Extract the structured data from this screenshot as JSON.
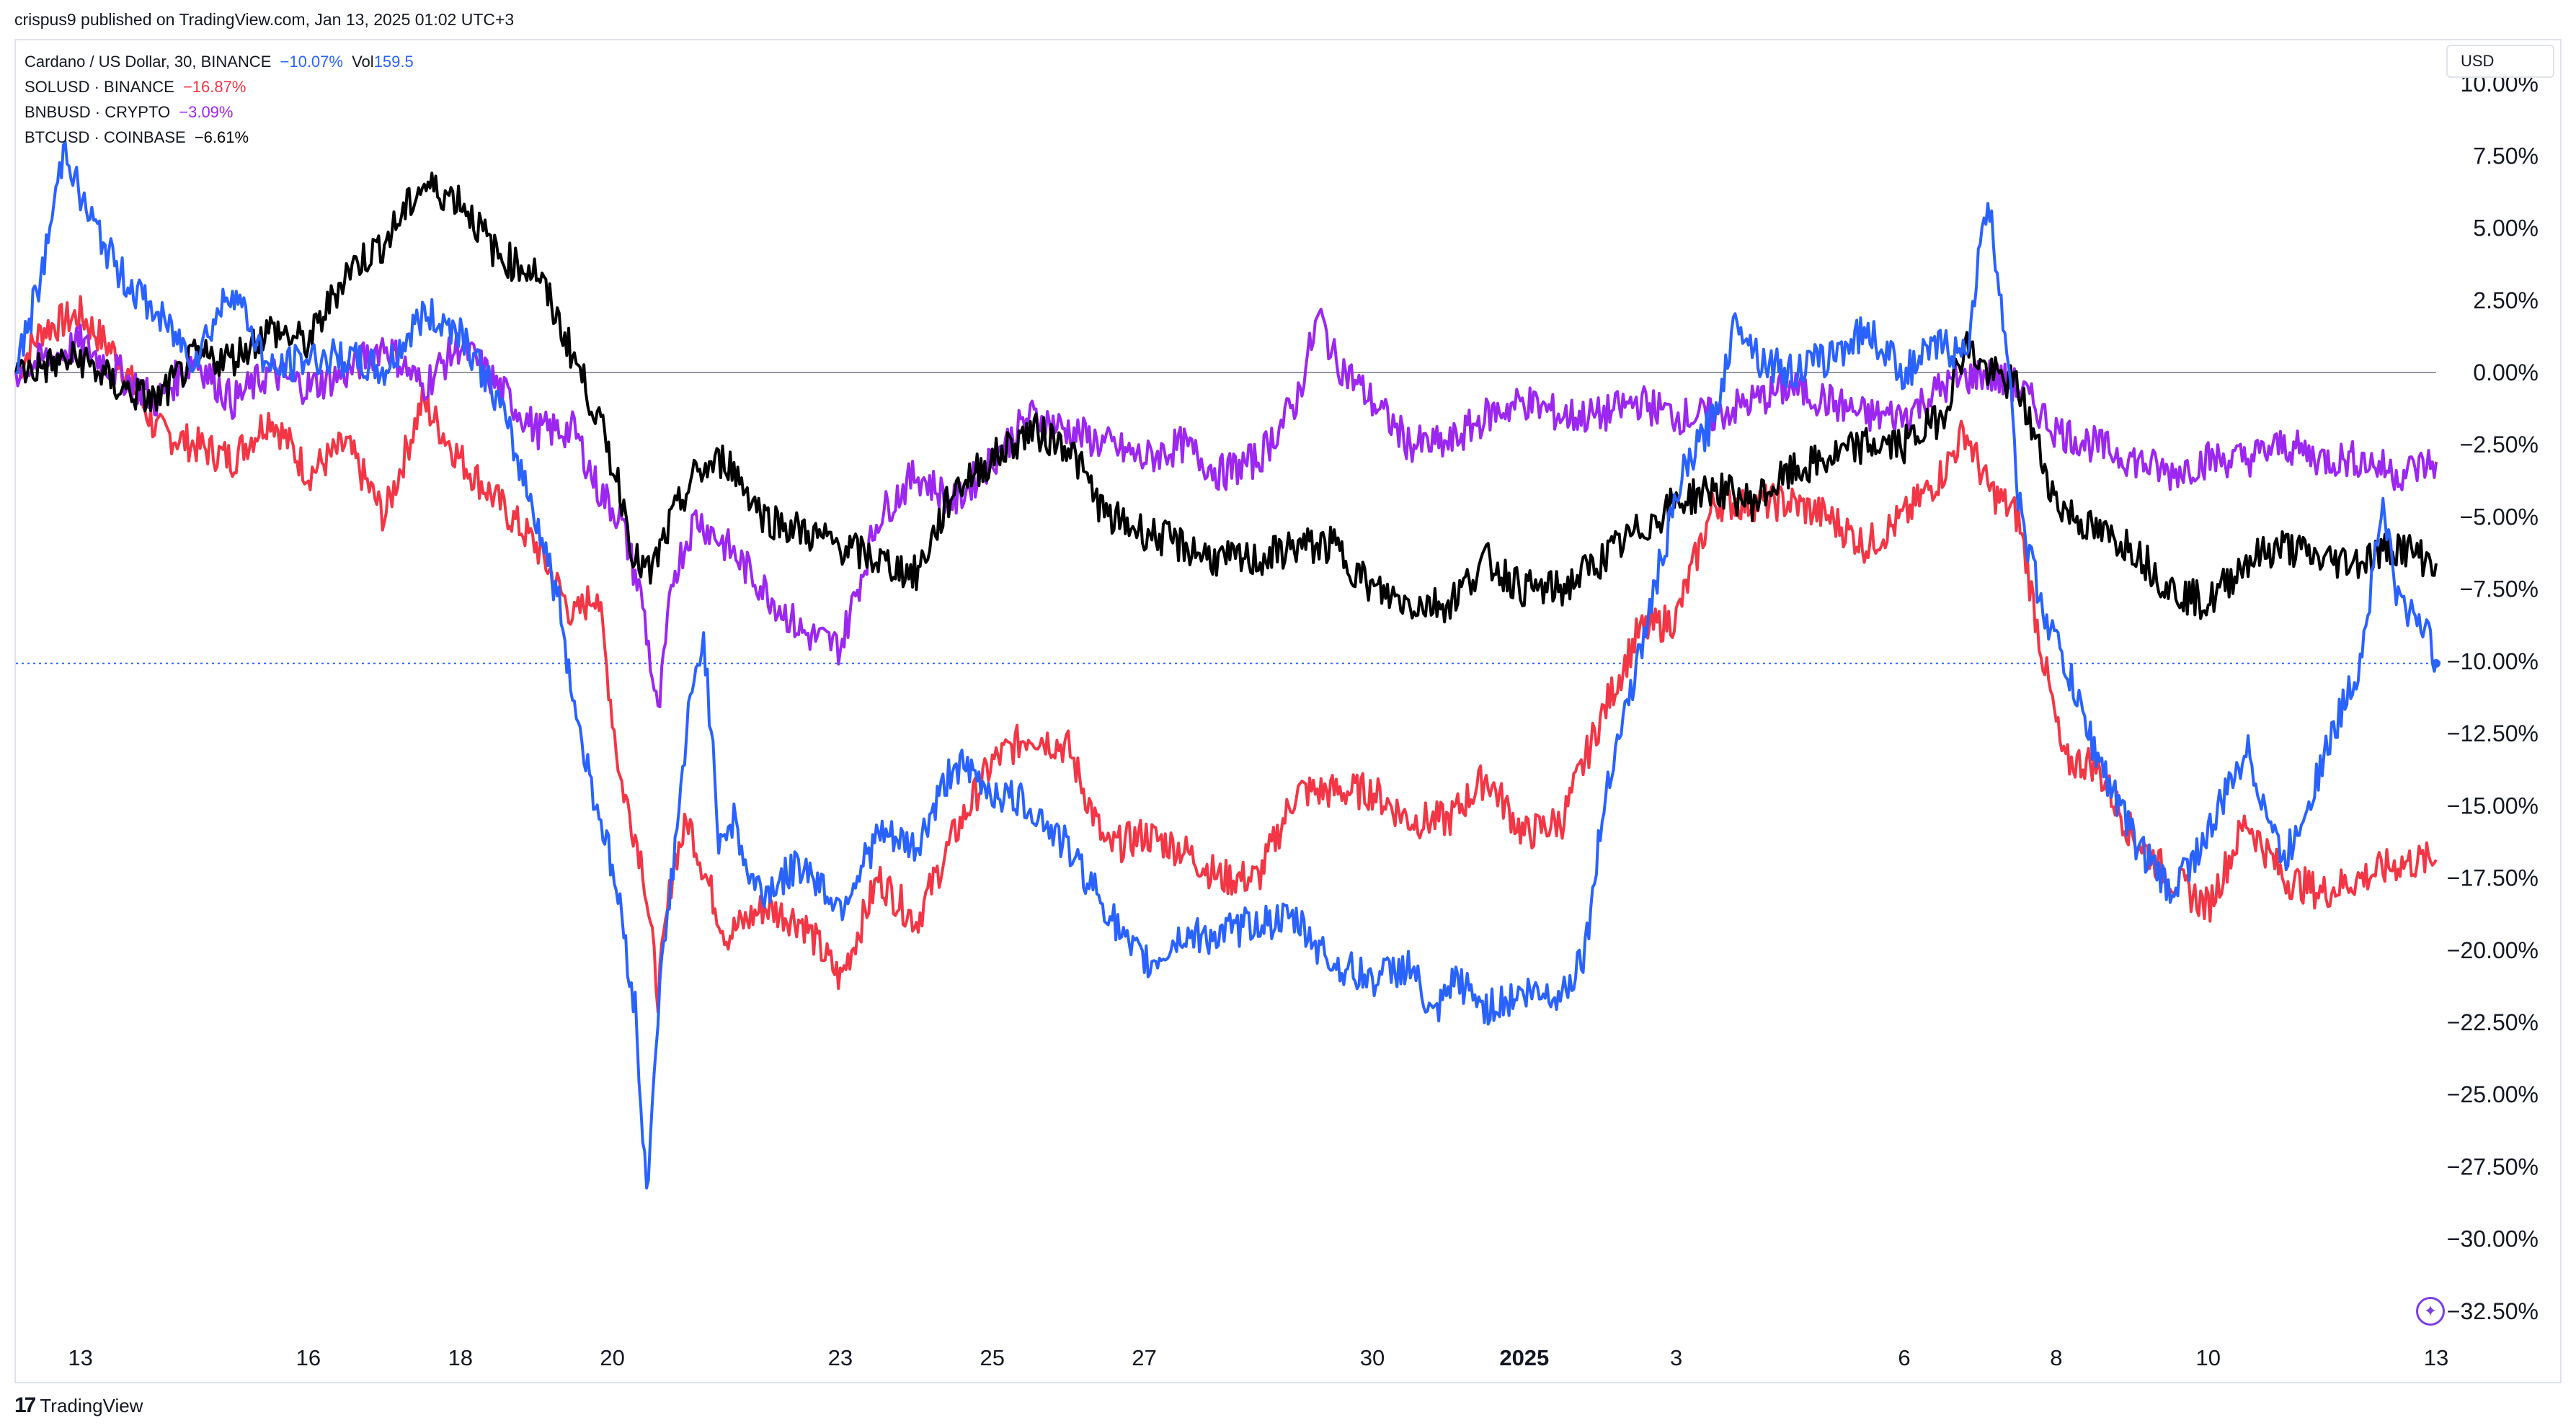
{
  "publish_line": "crispus9 published on TradingView.com, Jan 13, 2025 01:02 UTC+3",
  "currency": "USD",
  "brand": "TradingView",
  "legend": [
    {
      "name": "Cardano / US Dollar, 30, BINANCE",
      "change": "−10.07%",
      "extra_label": "Vol",
      "extra_value": "159.5",
      "color": "#2962ff"
    },
    {
      "name": "SOLUSD · BINANCE",
      "change": "−16.87%",
      "color": "#f23645"
    },
    {
      "name": "BNBUSD · CRYPTO",
      "change": "−3.09%",
      "color": "#9c27f0"
    },
    {
      "name": "BTCUSD · COINBASE",
      "change": "−6.61%",
      "color": "#000000"
    }
  ],
  "chart_data": {
    "type": "line",
    "y_unit": "%",
    "ylim": [
      -33.5,
      11.5
    ],
    "yticks": [
      "10.00%",
      "7.50%",
      "5.00%",
      "2.50%",
      "0.00%",
      "−2.50%",
      "−5.00%",
      "−7.50%",
      "−10.00%",
      "−12.50%",
      "−15.00%",
      "−17.50%",
      "−20.00%",
      "−22.50%",
      "−25.00%",
      "−27.50%",
      "−30.00%",
      "−32.50%"
    ],
    "ytick_values": [
      10,
      7.5,
      5,
      2.5,
      0,
      -2.5,
      -5,
      -7.5,
      -10,
      -12.5,
      -15,
      -17.5,
      -20,
      -22.5,
      -25,
      -27.5,
      -30,
      -32.5
    ],
    "xlim": [
      -0.35,
      31.5
    ],
    "x_ticks": [
      {
        "label": "13",
        "x": 0.5,
        "bold": false
      },
      {
        "label": "16",
        "x": 3.5,
        "bold": false
      },
      {
        "label": "18",
        "x": 5.5,
        "bold": false
      },
      {
        "label": "20",
        "x": 7.5,
        "bold": false
      },
      {
        "label": "23",
        "x": 10.5,
        "bold": false
      },
      {
        "label": "25",
        "x": 12.5,
        "bold": false
      },
      {
        "label": "27",
        "x": 14.5,
        "bold": false
      },
      {
        "label": "30",
        "x": 17.5,
        "bold": false
      },
      {
        "label": "2025",
        "x": 19.5,
        "bold": true
      },
      {
        "label": "3",
        "x": 21.5,
        "bold": false
      },
      {
        "label": "6",
        "x": 24.5,
        "bold": false
      },
      {
        "label": "8",
        "x": 26.5,
        "bold": false
      },
      {
        "label": "10",
        "x": 28.5,
        "bold": false
      },
      {
        "label": "13",
        "x": 31.5,
        "bold": false
      }
    ],
    "zero_line": 0,
    "last_value_line": -10.07,
    "series": [
      {
        "name": "SOLUSD",
        "color": "#f23645",
        "x": [
          -0.35,
          0.0,
          0.5,
          1.0,
          1.5,
          2.0,
          2.5,
          3.0,
          3.5,
          4.0,
          4.5,
          5.0,
          5.5,
          6.0,
          6.5,
          7.0,
          7.3,
          7.6,
          7.9,
          8.1,
          8.3,
          8.5,
          8.8,
          9.0,
          9.5,
          10.0,
          10.5,
          11.0,
          11.5,
          12.0,
          12.5,
          13.0,
          13.5,
          14.0,
          14.5,
          15.0,
          15.5,
          16.0,
          16.5,
          17.0,
          17.5,
          18.0,
          18.5,
          19.0,
          19.5,
          20.0,
          20.5,
          21.0,
          21.5,
          22.0,
          22.5,
          23.0,
          23.5,
          24.0,
          24.5,
          25.0,
          25.3,
          25.6,
          26.0,
          26.3,
          26.6,
          27.0,
          27.5,
          28.0,
          28.5,
          29.0,
          29.5,
          30.0,
          30.5,
          31.0,
          31.5
        ],
        "values": [
          0.0,
          1.5,
          2.0,
          0.5,
          -2.0,
          -2.5,
          -3.0,
          -1.5,
          -3.5,
          -2.5,
          -5.0,
          -1.0,
          -3.0,
          -4.5,
          -6.0,
          -8.5,
          -7.5,
          -14.0,
          -17.0,
          -21.5,
          -17.0,
          -15.5,
          -18.0,
          -19.5,
          -18.5,
          -19.0,
          -21.0,
          -17.5,
          -19.0,
          -16.0,
          -13.5,
          -12.5,
          -13.0,
          -16.5,
          -16.0,
          -16.5,
          -17.5,
          -17.5,
          -14.5,
          -14.5,
          -14.5,
          -15.5,
          -15.5,
          -14.0,
          -16.0,
          -15.5,
          -12.0,
          -9.0,
          -8.5,
          -4.5,
          -4.5,
          -4.5,
          -5.0,
          -6.0,
          -5.0,
          -3.5,
          -2.0,
          -4.0,
          -5.0,
          -9.5,
          -13.5,
          -13.5,
          -16.0,
          -17.5,
          -18.5,
          -15.5,
          -17.5,
          -18.0,
          -17.5,
          -17.0,
          -16.87
        ]
      },
      {
        "name": "BNBUSD",
        "color": "#9c27f0",
        "x": [
          -0.35,
          0.5,
          1.0,
          1.5,
          2.0,
          2.5,
          3.0,
          3.5,
          4.0,
          4.5,
          5.0,
          5.5,
          6.0,
          6.5,
          7.0,
          7.3,
          7.6,
          7.9,
          8.1,
          8.3,
          8.6,
          9.0,
          9.5,
          10.0,
          10.5,
          11.0,
          11.5,
          12.0,
          12.5,
          13.0,
          13.5,
          14.0,
          14.5,
          15.0,
          15.5,
          16.0,
          16.5,
          16.8,
          17.0,
          17.5,
          18.0,
          18.5,
          19.0,
          19.5,
          20.0,
          20.5,
          21.0,
          21.5,
          22.0,
          22.5,
          23.0,
          23.5,
          24.0,
          24.5,
          25.0,
          25.5,
          26.0,
          26.5,
          27.0,
          27.5,
          28.0,
          28.5,
          29.0,
          29.5,
          30.0,
          30.5,
          31.0,
          31.5
        ],
        "values": [
          0.0,
          1.0,
          0.0,
          -1.0,
          0.5,
          -1.0,
          0.0,
          -0.5,
          0.0,
          1.0,
          -0.5,
          1.0,
          -0.5,
          -2.0,
          -2.0,
          -4.0,
          -5.0,
          -8.0,
          -12.0,
          -7.0,
          -5.0,
          -6.0,
          -7.5,
          -9.0,
          -9.5,
          -5.0,
          -3.5,
          -4.5,
          -3.0,
          -1.5,
          -2.0,
          -2.5,
          -3.0,
          -2.5,
          -3.5,
          -3.0,
          -1.0,
          2.0,
          0.5,
          -1.0,
          -2.5,
          -2.5,
          -1.5,
          -1.0,
          -1.5,
          -1.5,
          -1.0,
          -1.5,
          -1.5,
          -1.0,
          -0.5,
          -1.0,
          -1.5,
          -1.5,
          -0.5,
          0.0,
          -0.5,
          -2.0,
          -2.5,
          -3.0,
          -3.5,
          -3.0,
          -3.0,
          -2.5,
          -3.0,
          -3.0,
          -3.5,
          -3.09
        ]
      },
      {
        "name": "BTCUSD",
        "color": "#000000",
        "x": [
          -0.35,
          0.5,
          1.0,
          1.5,
          2.0,
          2.5,
          3.0,
          3.5,
          4.0,
          4.5,
          5.0,
          5.5,
          6.0,
          6.5,
          7.0,
          7.3,
          7.6,
          7.8,
          8.0,
          8.3,
          8.6,
          9.0,
          9.5,
          10.0,
          10.5,
          11.0,
          11.5,
          12.0,
          12.5,
          13.0,
          13.5,
          14.0,
          14.5,
          15.0,
          15.5,
          16.0,
          16.5,
          17.0,
          17.5,
          18.0,
          18.5,
          19.0,
          19.5,
          20.0,
          20.5,
          21.0,
          21.5,
          22.0,
          22.5,
          23.0,
          23.5,
          24.0,
          24.5,
          25.0,
          25.3,
          25.6,
          26.0,
          26.5,
          27.0,
          27.5,
          28.0,
          28.5,
          29.0,
          29.5,
          30.0,
          30.5,
          31.0,
          31.5
        ],
        "values": [
          0.0,
          0.5,
          -0.5,
          -1.0,
          0.5,
          0.5,
          1.5,
          1.0,
          3.5,
          4.5,
          6.5,
          6.0,
          4.0,
          3.5,
          0.5,
          -1.5,
          -4.0,
          -6.5,
          -7.0,
          -5.0,
          -3.5,
          -3.0,
          -5.0,
          -5.5,
          -6.0,
          -6.5,
          -7.0,
          -4.0,
          -3.0,
          -2.0,
          -2.5,
          -5.0,
          -5.5,
          -6.0,
          -6.5,
          -6.5,
          -6.0,
          -6.0,
          -7.5,
          -8.0,
          -8.0,
          -6.5,
          -7.5,
          -7.5,
          -6.5,
          -5.5,
          -4.5,
          -4.0,
          -4.5,
          -3.5,
          -3.0,
          -2.5,
          -2.5,
          -1.5,
          1.0,
          0.0,
          -0.5,
          -4.5,
          -5.5,
          -6.0,
          -7.5,
          -8.0,
          -6.5,
          -6.0,
          -6.5,
          -6.5,
          -6.0,
          -6.61
        ]
      },
      {
        "name": "ADAUSD",
        "color": "#2962ff",
        "x": [
          -0.35,
          0.0,
          0.3,
          0.5,
          1.0,
          1.5,
          2.0,
          2.5,
          3.0,
          3.5,
          4.0,
          4.5,
          5.0,
          5.5,
          6.0,
          6.5,
          6.8,
          7.0,
          7.2,
          7.4,
          7.6,
          7.8,
          7.95,
          8.1,
          8.3,
          8.5,
          8.7,
          8.9,
          9.1,
          9.3,
          9.5,
          10.0,
          10.5,
          11.0,
          11.5,
          12.0,
          12.5,
          13.0,
          13.5,
          14.0,
          14.3,
          14.6,
          15.0,
          15.5,
          16.0,
          16.5,
          17.0,
          17.5,
          18.0,
          18.3,
          18.6,
          19.0,
          19.5,
          20.0,
          20.3,
          20.6,
          21.0,
          21.3,
          21.6,
          22.0,
          22.3,
          22.6,
          23.0,
          23.5,
          24.0,
          24.5,
          25.0,
          25.3,
          25.6,
          25.9,
          26.0,
          26.3,
          26.6,
          27.0,
          27.5,
          28.0,
          28.5,
          29.0,
          29.5,
          30.0,
          30.5,
          30.8,
          31.0,
          31.3,
          31.5
        ],
        "values": [
          0.0,
          3.5,
          8.0,
          6.0,
          3.5,
          2.0,
          0.5,
          3.0,
          0.0,
          0.5,
          0.5,
          0.0,
          2.0,
          1.5,
          -1.0,
          -5.0,
          -8.0,
          -11.5,
          -14.0,
          -16.0,
          -18.5,
          -22.0,
          -28.5,
          -22.0,
          -17.0,
          -12.0,
          -9.0,
          -16.0,
          -15.5,
          -17.5,
          -18.0,
          -17.0,
          -18.5,
          -16.0,
          -16.5,
          -13.5,
          -14.5,
          -15.0,
          -16.5,
          -18.5,
          -20.0,
          -20.5,
          -19.5,
          -19.5,
          -19.0,
          -19.0,
          -20.5,
          -21.0,
          -20.5,
          -22.5,
          -21.0,
          -22.0,
          -21.5,
          -21.5,
          -20.0,
          -14.0,
          -10.0,
          -6.5,
          -3.5,
          -1.5,
          2.0,
          0.5,
          0.0,
          0.5,
          1.5,
          0.0,
          1.0,
          0.5,
          6.0,
          0.0,
          -4.5,
          -8.0,
          -10.0,
          -13.0,
          -16.0,
          -18.0,
          -16.0,
          -13.0,
          -17.0,
          -13.5,
          -10.0,
          -4.5,
          -8.0,
          -8.5,
          -10.07
        ]
      }
    ]
  }
}
